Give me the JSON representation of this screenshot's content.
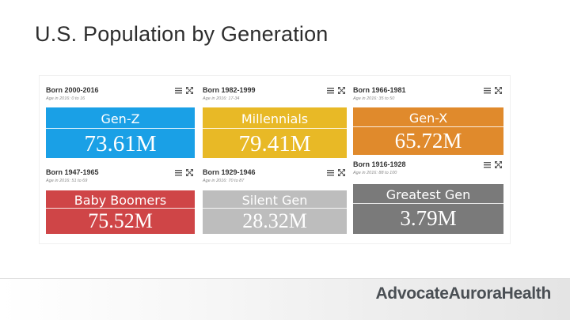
{
  "title": "U.S. Population by Generation",
  "brand": "AdvocateAuroraHealth",
  "icons": {
    "menu": "hamburger-menu-icon",
    "expand": "expand-arrows-icon"
  },
  "cards": [
    {
      "born": "Born 2000-2016",
      "age": "Age in 2016: 0 to 16",
      "name": "Gen-Z",
      "value": "73.61M",
      "color": "#1aa0e6"
    },
    {
      "born": "Born 1982-1999",
      "age": "Age in 2016: 17-34",
      "name": "Millennials",
      "value": "79.41M",
      "color": "#e8b926"
    },
    {
      "born": "Born 1966-1981",
      "age": "Age in 2016: 35 to 50",
      "name": "Gen-X",
      "value": "65.72M",
      "color": "#e08a2c"
    },
    {
      "born": "Born 1947-1965",
      "age": "Age in 2016: 51 to 69",
      "name": "Baby Boomers",
      "value": "75.52M",
      "color": "#cf4547"
    },
    {
      "born": "Born 1929-1946",
      "age": "Age in 2016: 70 to 87",
      "name": "Silent Gen",
      "value": "28.32M",
      "color": "#bdbdbd"
    },
    {
      "born": "Born 1916-1928",
      "age": "Age in 2016: 88 to 100",
      "name": "Greatest Gen",
      "value": "3.79M",
      "color": "#7a7a7a"
    }
  ]
}
